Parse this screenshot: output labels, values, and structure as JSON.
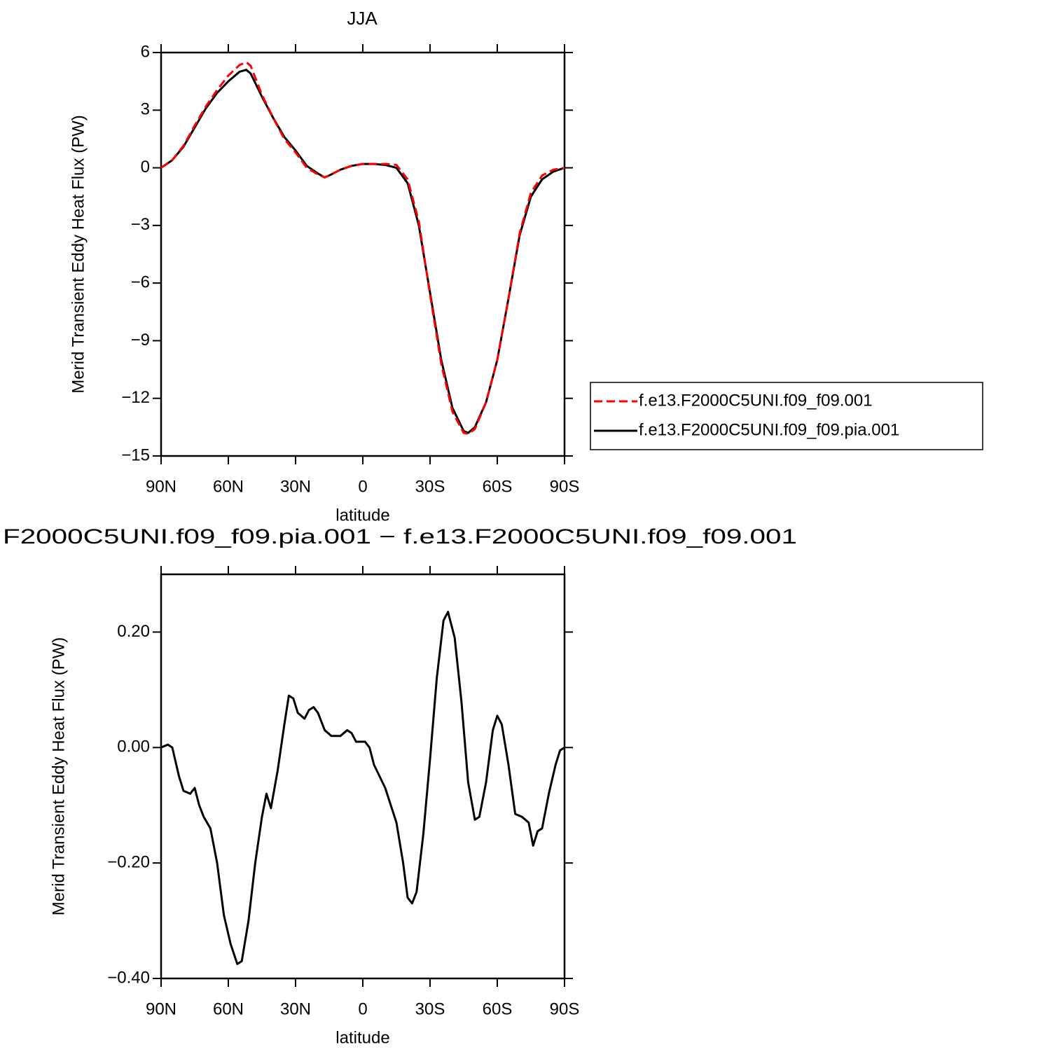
{
  "chart_data": [
    {
      "type": "line",
      "title": "JJA",
      "ylabel": "Merid Transient Eddy Heat Flux (PW)",
      "xlabel": "latitude",
      "xlim": [
        90,
        -90
      ],
      "xticks": [
        {
          "value": 90,
          "label": "90N"
        },
        {
          "value": 60,
          "label": "60N"
        },
        {
          "value": 30,
          "label": "30N"
        },
        0,
        {
          "value": -30,
          "label": "30S"
        },
        {
          "value": -60,
          "label": "60S"
        },
        {
          "value": -90,
          "label": "90S"
        }
      ],
      "ylim": [
        -15,
        6
      ],
      "yticks": [
        {
          "value": -15,
          "label": "−15"
        },
        {
          "value": -12,
          "label": "−12"
        },
        {
          "value": -9,
          "label": "−9"
        },
        {
          "value": -6,
          "label": "−6"
        },
        {
          "value": -3,
          "label": "−3"
        },
        0,
        3,
        6
      ],
      "legend": "right",
      "x": [
        90,
        85,
        80,
        75,
        70,
        65,
        60,
        55,
        52,
        50,
        45,
        40,
        35,
        30,
        25,
        20,
        17,
        15,
        10,
        5,
        0,
        -5,
        -10,
        -15,
        -20,
        -25,
        -30,
        -35,
        -40,
        -45,
        -47,
        -50,
        -55,
        -60,
        -65,
        -70,
        -75,
        -80,
        -85,
        -90
      ],
      "series": [
        {
          "name": "f.e13.F2000C5UNI.f09_f09.001",
          "color": "#ff0000",
          "dashed": true,
          "values": [
            0,
            0.4,
            1.15,
            2.2,
            3.2,
            4.05,
            4.8,
            5.35,
            5.5,
            5.3,
            3.8,
            2.6,
            1.5,
            0.8,
            0.0,
            -0.35,
            -0.5,
            -0.4,
            -0.1,
            0.1,
            0.2,
            0.2,
            0.2,
            0.15,
            -0.6,
            -2.8,
            -6.6,
            -10.2,
            -12.7,
            -13.8,
            -13.85,
            -13.6,
            -12.2,
            -10.0,
            -6.8,
            -3.4,
            -1.3,
            -0.4,
            -0.1,
            0
          ]
        },
        {
          "name": "f.e13.F2000C5UNI.f09_f09.pia.001",
          "color": "#000000",
          "dashed": false,
          "values": [
            0,
            0.4,
            1.1,
            2.1,
            3.1,
            3.9,
            4.5,
            5.0,
            5.1,
            4.9,
            3.7,
            2.6,
            1.6,
            0.9,
            0.1,
            -0.3,
            -0.5,
            -0.4,
            -0.1,
            0.1,
            0.2,
            0.2,
            0.15,
            0.0,
            -0.8,
            -3.0,
            -6.5,
            -10.0,
            -12.5,
            -13.7,
            -13.8,
            -13.5,
            -12.2,
            -10.0,
            -6.8,
            -3.5,
            -1.5,
            -0.6,
            -0.2,
            0
          ]
        }
      ]
    },
    {
      "type": "line",
      "title": "F2000C5UNI.f09_f09.pia.001 − f.e13.F2000C5UNI.f09_f09.001",
      "ylabel": "Merid Transient Eddy Heat Flux (PW)",
      "xlabel": "latitude",
      "xlim": [
        90,
        -90
      ],
      "xticks": [
        {
          "value": 90,
          "label": "90N"
        },
        {
          "value": 60,
          "label": "60N"
        },
        {
          "value": 30,
          "label": "30N"
        },
        0,
        {
          "value": -30,
          "label": "30S"
        },
        {
          "value": -60,
          "label": "60S"
        },
        {
          "value": -90,
          "label": "90S"
        }
      ],
      "ylim": [
        -0.4,
        0.3
      ],
      "yticks": [
        {
          "value": -0.4,
          "label": "−0.40"
        },
        {
          "value": -0.2,
          "label": "−0.20"
        },
        {
          "value": 0,
          "label": "0.00"
        },
        {
          "value": 0.2,
          "label": "0.20"
        }
      ],
      "x": [
        90,
        87,
        85,
        82,
        80,
        77,
        75,
        73,
        71,
        68,
        65,
        62,
        59,
        56,
        54,
        51,
        48,
        45,
        43,
        41,
        38,
        35,
        33,
        31,
        29,
        26,
        24,
        22,
        20,
        17,
        14,
        10,
        7,
        5,
        3,
        1,
        -1,
        -3,
        -5,
        -10,
        -15,
        -18,
        -20,
        -22,
        -24,
        -27,
        -30,
        -33,
        -36,
        -38,
        -41,
        -44,
        -47,
        -50,
        -52,
        -55,
        -58,
        -60,
        -62,
        -65,
        -68,
        -71,
        -74,
        -76,
        -78,
        -80,
        -83,
        -86,
        -88,
        -90
      ],
      "series": [
        {
          "color": "#000000",
          "dashed": false,
          "values": [
            0,
            0.005,
            0.0,
            -0.05,
            -0.075,
            -0.08,
            -0.07,
            -0.1,
            -0.12,
            -0.14,
            -0.2,
            -0.29,
            -0.34,
            -0.375,
            -0.37,
            -0.3,
            -0.2,
            -0.12,
            -0.08,
            -0.105,
            -0.04,
            0.04,
            0.09,
            0.085,
            0.06,
            0.05,
            0.065,
            0.07,
            0.06,
            0.03,
            0.02,
            0.02,
            0.03,
            0.025,
            0.01,
            0.01,
            0.01,
            0.0,
            -0.03,
            -0.07,
            -0.13,
            -0.2,
            -0.26,
            -0.27,
            -0.25,
            -0.15,
            -0.02,
            0.12,
            0.22,
            0.235,
            0.19,
            0.08,
            -0.06,
            -0.125,
            -0.12,
            -0.06,
            0.03,
            0.055,
            0.04,
            -0.03,
            -0.115,
            -0.12,
            -0.13,
            -0.17,
            -0.145,
            -0.14,
            -0.08,
            -0.03,
            -0.005,
            0
          ]
        }
      ]
    }
  ]
}
